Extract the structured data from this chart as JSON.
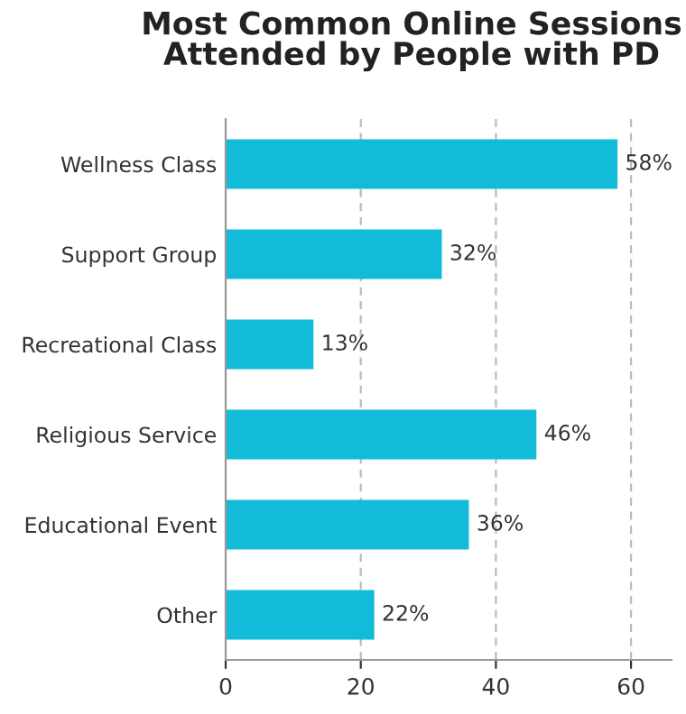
{
  "chart_data": {
    "type": "bar",
    "orientation": "horizontal",
    "title": "Most Common Online Sessions\nAttended by People with PD",
    "categories": [
      "Wellness Class",
      "Support Group",
      "Recreational Class",
      "Religious Service",
      "Educational Event",
      "Other"
    ],
    "values": [
      58,
      32,
      13,
      46,
      36,
      22
    ],
    "value_labels": [
      "58%",
      "32%",
      "13%",
      "46%",
      "36%",
      "22%"
    ],
    "color": "#12bcd9",
    "xlim": [
      0,
      66
    ],
    "xticks": [
      0,
      20,
      40,
      60
    ],
    "grid": "x"
  }
}
